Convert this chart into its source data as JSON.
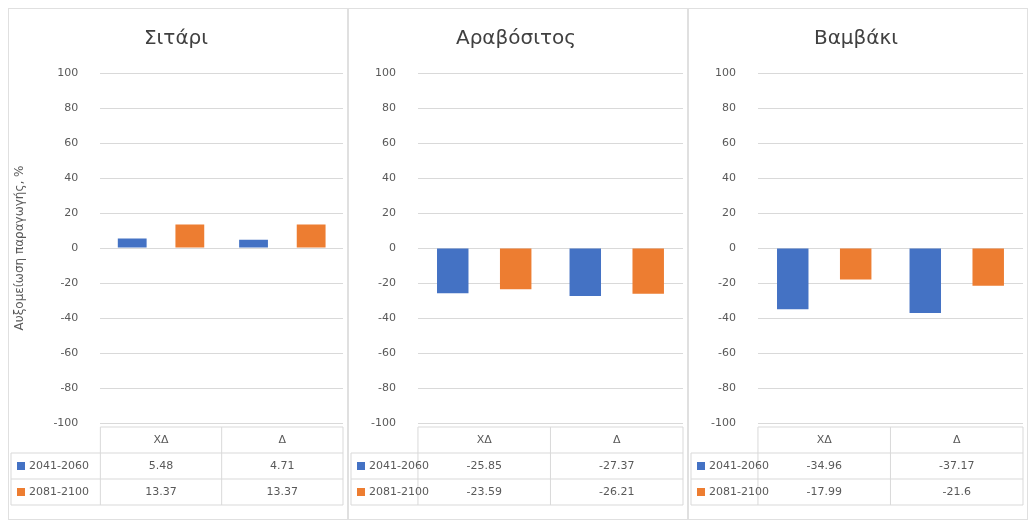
{
  "chart_data": [
    {
      "type": "bar",
      "title": "Σιτάρι",
      "ylabel": "Αυξομείωση παραγωγής, %",
      "categories": [
        "ΧΔ",
        "Δ"
      ],
      "ylim": [
        -100,
        100
      ],
      "yticks": [
        -100,
        -80,
        -60,
        -40,
        -20,
        0,
        20,
        40,
        60,
        80,
        100
      ],
      "grid": "y",
      "legend": "bottom",
      "data_labels": true,
      "series": [
        {
          "name": "2041-2060",
          "color": "#4472c4",
          "values": [
            5.48,
            4.71
          ]
        },
        {
          "name": "2081-2100",
          "color": "#ed7d31",
          "values": [
            13.37,
            13.37
          ]
        }
      ]
    },
    {
      "type": "bar",
      "title": "Αραβόσιτος",
      "categories": [
        "ΧΔ",
        "Δ"
      ],
      "ylim": [
        -100,
        100
      ],
      "yticks": [
        -100,
        -80,
        -60,
        -40,
        -20,
        0,
        20,
        40,
        60,
        80,
        100
      ],
      "grid": "y",
      "legend": "bottom",
      "data_labels": true,
      "series": [
        {
          "name": "2041-2060",
          "color": "#4472c4",
          "values": [
            -25.85,
            -27.37
          ]
        },
        {
          "name": "2081-2100",
          "color": "#ed7d31",
          "values": [
            -23.59,
            -26.21
          ]
        }
      ]
    },
    {
      "type": "bar",
      "title": "Βαμβάκι",
      "categories": [
        "ΧΔ",
        "Δ"
      ],
      "ylim": [
        -100,
        100
      ],
      "yticks": [
        -100,
        -80,
        -60,
        -40,
        -20,
        0,
        20,
        40,
        60,
        80,
        100
      ],
      "grid": "y",
      "legend": "bottom",
      "data_labels": true,
      "series": [
        {
          "name": "2041-2060",
          "color": "#4472c4",
          "values": [
            -34.96,
            -37.17
          ]
        },
        {
          "name": "2081-2100",
          "color": "#ed7d31",
          "values": [
            -17.99,
            -21.6
          ]
        }
      ]
    }
  ]
}
